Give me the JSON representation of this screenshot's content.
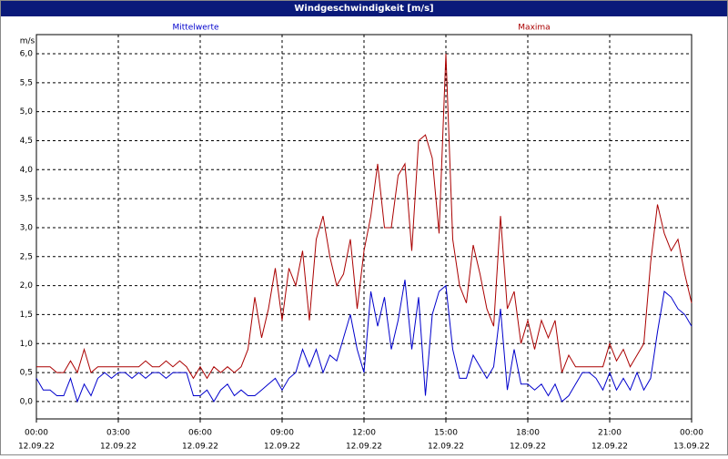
{
  "chart_data": {
    "type": "line",
    "title": "Windgeschwindigkeit [m/s]",
    "y_unit": "m/s",
    "grid": true,
    "xlim": [
      0,
      24
    ],
    "xticks": [
      {
        "value": 0,
        "label": "00:00",
        "date": "12.09.22"
      },
      {
        "value": 3,
        "label": "03:00",
        "date": "12.09.22"
      },
      {
        "value": 6,
        "label": "06:00",
        "date": "12.09.22"
      },
      {
        "value": 9,
        "label": "09:00",
        "date": "12.09.22"
      },
      {
        "value": 12,
        "label": "12:00",
        "date": "12.09.22"
      },
      {
        "value": 15,
        "label": "15:00",
        "date": "12.09.22"
      },
      {
        "value": 18,
        "label": "18:00",
        "date": "12.09.22"
      },
      {
        "value": 21,
        "label": "21:00",
        "date": "12.09.22"
      },
      {
        "value": 24,
        "label": "00:00",
        "date": "13.09.22"
      }
    ],
    "ylim": [
      -0.3,
      6.33
    ],
    "yticks": [
      {
        "value": 0,
        "label": "0,0"
      },
      {
        "value": 0.5,
        "label": "0,5"
      },
      {
        "value": 1,
        "label": "1,0"
      },
      {
        "value": 1.5,
        "label": "1,5"
      },
      {
        "value": 2,
        "label": "2,0"
      },
      {
        "value": 2.5,
        "label": "2,5"
      },
      {
        "value": 3,
        "label": "3,0"
      },
      {
        "value": 3.5,
        "label": "3,5"
      },
      {
        "value": 4,
        "label": "4,0"
      },
      {
        "value": 4.5,
        "label": "4,5"
      },
      {
        "value": 5,
        "label": "5,0"
      },
      {
        "value": 5.5,
        "label": "5,5"
      },
      {
        "value": 6,
        "label": "6,0"
      }
    ],
    "x": [
      0,
      0.25,
      0.5,
      0.75,
      1,
      1.25,
      1.5,
      1.75,
      2,
      2.25,
      2.5,
      2.75,
      3,
      3.25,
      3.5,
      3.75,
      4,
      4.25,
      4.5,
      4.75,
      5,
      5.25,
      5.5,
      5.75,
      6,
      6.25,
      6.5,
      6.75,
      7,
      7.25,
      7.5,
      7.75,
      8,
      8.25,
      8.5,
      8.75,
      9,
      9.25,
      9.5,
      9.75,
      10,
      10.25,
      10.5,
      10.75,
      11,
      11.25,
      11.5,
      11.75,
      12,
      12.25,
      12.5,
      12.75,
      13,
      13.25,
      13.5,
      13.75,
      14,
      14.25,
      14.5,
      14.75,
      15,
      15.25,
      15.5,
      15.75,
      16,
      16.25,
      16.5,
      16.75,
      17,
      17.25,
      17.5,
      17.75,
      18,
      18.25,
      18.5,
      18.75,
      19,
      19.25,
      19.5,
      19.75,
      20,
      20.25,
      20.5,
      20.75,
      21,
      21.25,
      21.5,
      21.75,
      22,
      22.25,
      22.5,
      22.75,
      23,
      23.25,
      23.5,
      23.75,
      24
    ],
    "series": [
      {
        "name": "Mittelwerte",
        "color": "#0000cc",
        "values": [
          0.4,
          0.2,
          0.2,
          0.1,
          0.1,
          0.4,
          0.0,
          0.3,
          0.1,
          0.4,
          0.5,
          0.4,
          0.5,
          0.5,
          0.4,
          0.5,
          0.4,
          0.5,
          0.5,
          0.4,
          0.5,
          0.5,
          0.5,
          0.1,
          0.1,
          0.2,
          0.0,
          0.2,
          0.3,
          0.1,
          0.2,
          0.1,
          0.1,
          0.2,
          0.3,
          0.4,
          0.2,
          0.4,
          0.5,
          0.9,
          0.6,
          0.9,
          0.5,
          0.8,
          0.7,
          1.1,
          1.5,
          0.9,
          0.5,
          1.9,
          1.3,
          1.8,
          0.9,
          1.4,
          2.1,
          0.9,
          1.8,
          0.1,
          1.5,
          1.9,
          2.0,
          0.9,
          0.4,
          0.4,
          0.8,
          0.6,
          0.4,
          0.6,
          1.6,
          0.2,
          0.9,
          0.3,
          0.3,
          0.2,
          0.3,
          0.1,
          0.3,
          0.0,
          0.1,
          0.3,
          0.5,
          0.5,
          0.4,
          0.2,
          0.5,
          0.2,
          0.4,
          0.2,
          0.5,
          0.2,
          0.4,
          1.2,
          1.9,
          1.8,
          1.6,
          1.5,
          1.3
        ]
      },
      {
        "name": "Maxima",
        "color": "#aa0000",
        "values": [
          0.6,
          0.6,
          0.6,
          0.5,
          0.5,
          0.7,
          0.5,
          0.9,
          0.5,
          0.6,
          0.6,
          0.6,
          0.6,
          0.6,
          0.6,
          0.6,
          0.7,
          0.6,
          0.6,
          0.7,
          0.6,
          0.7,
          0.6,
          0.4,
          0.6,
          0.4,
          0.6,
          0.5,
          0.6,
          0.5,
          0.6,
          0.9,
          1.8,
          1.1,
          1.6,
          2.3,
          1.4,
          2.3,
          2.0,
          2.6,
          1.4,
          2.8,
          3.2,
          2.5,
          2.0,
          2.2,
          2.8,
          1.6,
          2.6,
          3.2,
          4.1,
          3.0,
          3.0,
          3.9,
          4.1,
          2.6,
          4.5,
          4.6,
          4.2,
          2.9,
          6.0,
          2.8,
          2.0,
          1.7,
          2.7,
          2.2,
          1.6,
          1.3,
          3.2,
          1.6,
          1.9,
          1.0,
          1.4,
          0.9,
          1.4,
          1.1,
          1.4,
          0.5,
          0.8,
          0.6,
          0.6,
          0.6,
          0.6,
          0.6,
          1.0,
          0.7,
          0.9,
          0.6,
          0.8,
          1.0,
          2.4,
          3.4,
          2.9,
          2.6,
          2.8,
          2.2,
          1.7
        ]
      }
    ]
  }
}
